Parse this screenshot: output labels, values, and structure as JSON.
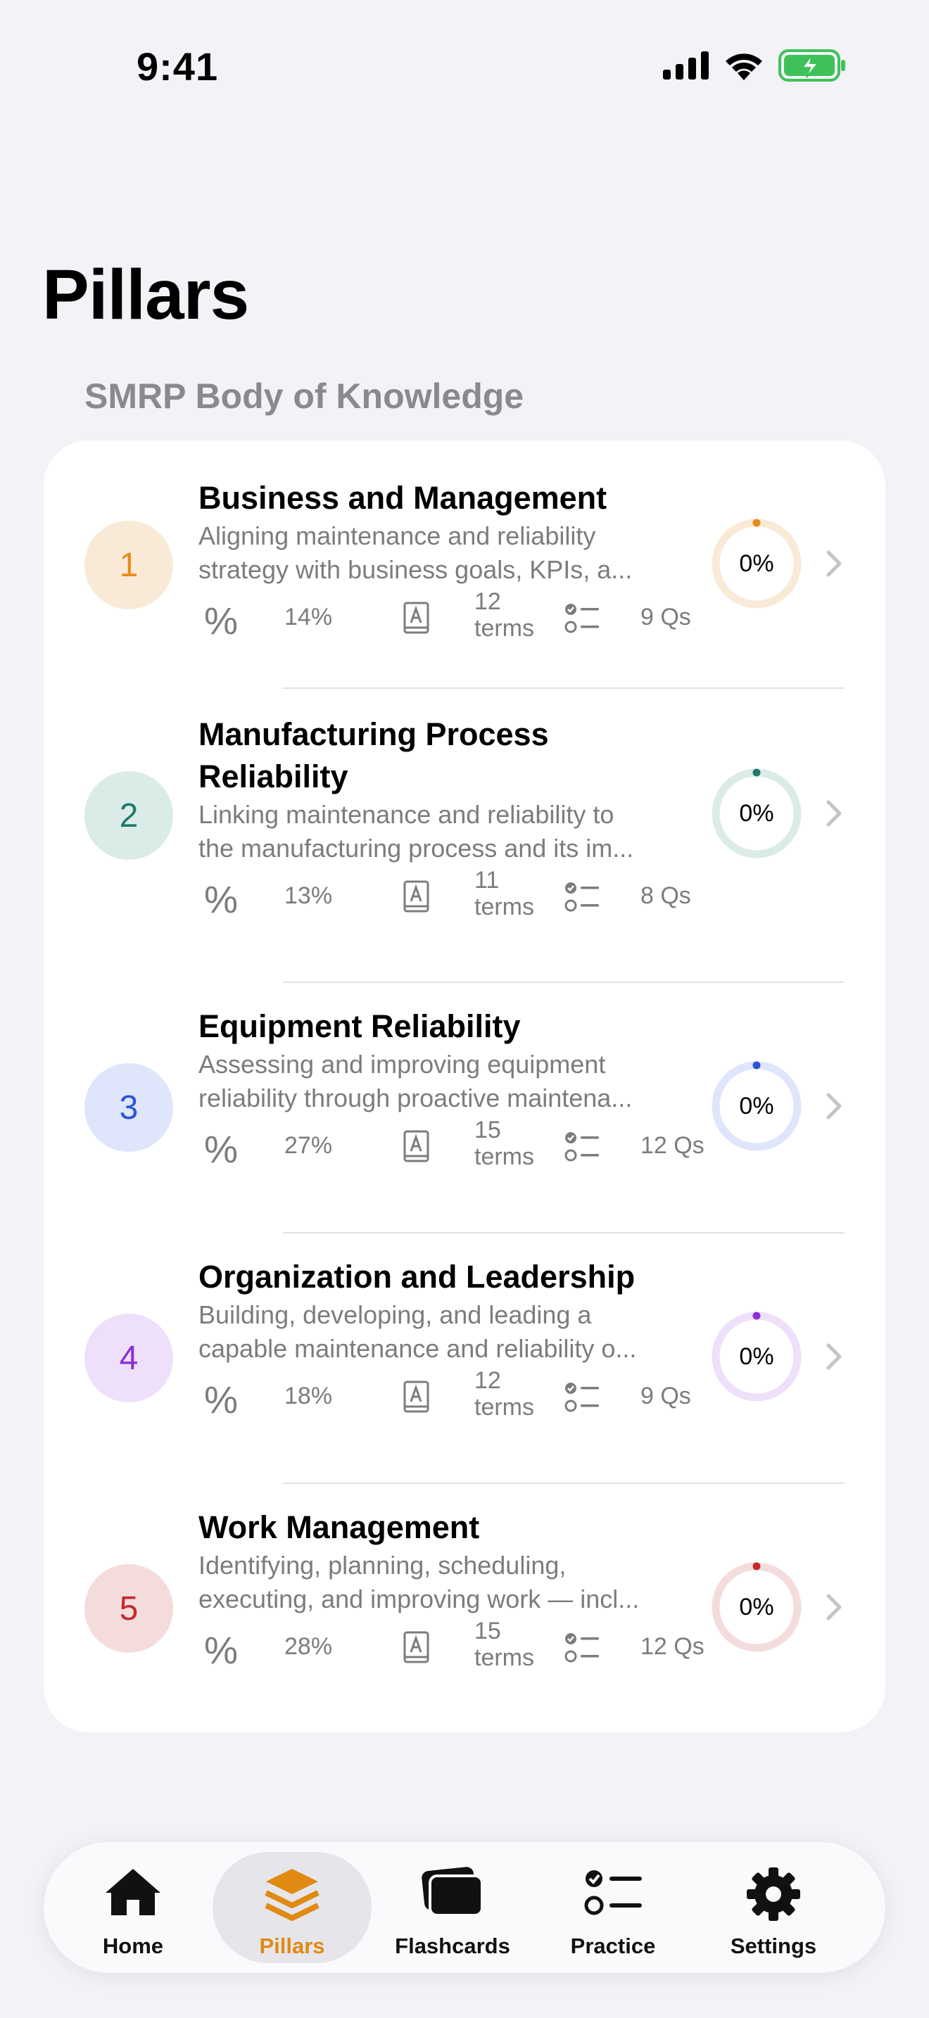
{
  "status_bar": {
    "time": "9:41"
  },
  "title": "Pillars",
  "section_header": "SMRP Body of Knowledge",
  "pillars": [
    {
      "number": "1",
      "title_lines": [
        "Business and Management"
      ],
      "desc_lines": [
        "Aligning maintenance and reliability",
        "strategy with business goals, KPIs, a..."
      ],
      "percent_icon": "%",
      "percent": "14%",
      "terms_count": "12",
      "terms_label": "terms",
      "questions": "9 Qs",
      "progress": "0%",
      "accent": "#e88a1a",
      "badge_bg": "#f9ead7",
      "ring_bg": "#f9ead7"
    },
    {
      "number": "2",
      "title_lines": [
        "Manufacturing Process",
        "Reliability"
      ],
      "desc_lines": [
        "Linking maintenance and reliability to",
        "the manufacturing process and its im..."
      ],
      "percent_icon": "%",
      "percent": "13%",
      "terms_count": "11",
      "terms_label": "terms",
      "questions": "8 Qs",
      "progress": "0%",
      "accent": "#1f7a6c",
      "badge_bg": "#dbece8",
      "ring_bg": "#dbece8"
    },
    {
      "number": "3",
      "title_lines": [
        "Equipment Reliability"
      ],
      "desc_lines": [
        "Assessing and improving equipment",
        "reliability through proactive maintena..."
      ],
      "percent_icon": "%",
      "percent": "27%",
      "terms_count": "15",
      "terms_label": "terms",
      "questions": "12 Qs",
      "progress": "0%",
      "accent": "#2a55d6",
      "badge_bg": "#dfe5fb",
      "ring_bg": "#dfe5fb"
    },
    {
      "number": "4",
      "title_lines": [
        "Organization and Leadership"
      ],
      "desc_lines": [
        "Building, developing, and leading a",
        "capable maintenance and reliability o..."
      ],
      "percent_icon": "%",
      "percent": "18%",
      "terms_count": "12",
      "terms_label": "terms",
      "questions": "9 Qs",
      "progress": "0%",
      "accent": "#8a2fd6",
      "badge_bg": "#eedffa",
      "ring_bg": "#eedffa"
    },
    {
      "number": "5",
      "title_lines": [
        "Work Management"
      ],
      "desc_lines": [
        "Identifying, planning, scheduling,",
        "executing, and improving work — incl..."
      ],
      "percent_icon": "%",
      "percent": "28%",
      "terms_count": "15",
      "terms_label": "terms",
      "questions": "12 Qs",
      "progress": "0%",
      "accent": "#c42a2a",
      "badge_bg": "#f5dcdc",
      "ring_bg": "#f5dcdc"
    }
  ],
  "tab_bar": {
    "tabs": [
      {
        "label": "Home",
        "icon": "house-icon",
        "active": false
      },
      {
        "label": "Pillars",
        "icon": "layers-icon",
        "active": true
      },
      {
        "label": "Flashcards",
        "icon": "cards-icon",
        "active": false
      },
      {
        "label": "Practice",
        "icon": "checklist-icon",
        "active": false
      },
      {
        "label": "Settings",
        "icon": "gear-icon",
        "active": false
      }
    ],
    "active_color": "#e08a12"
  }
}
